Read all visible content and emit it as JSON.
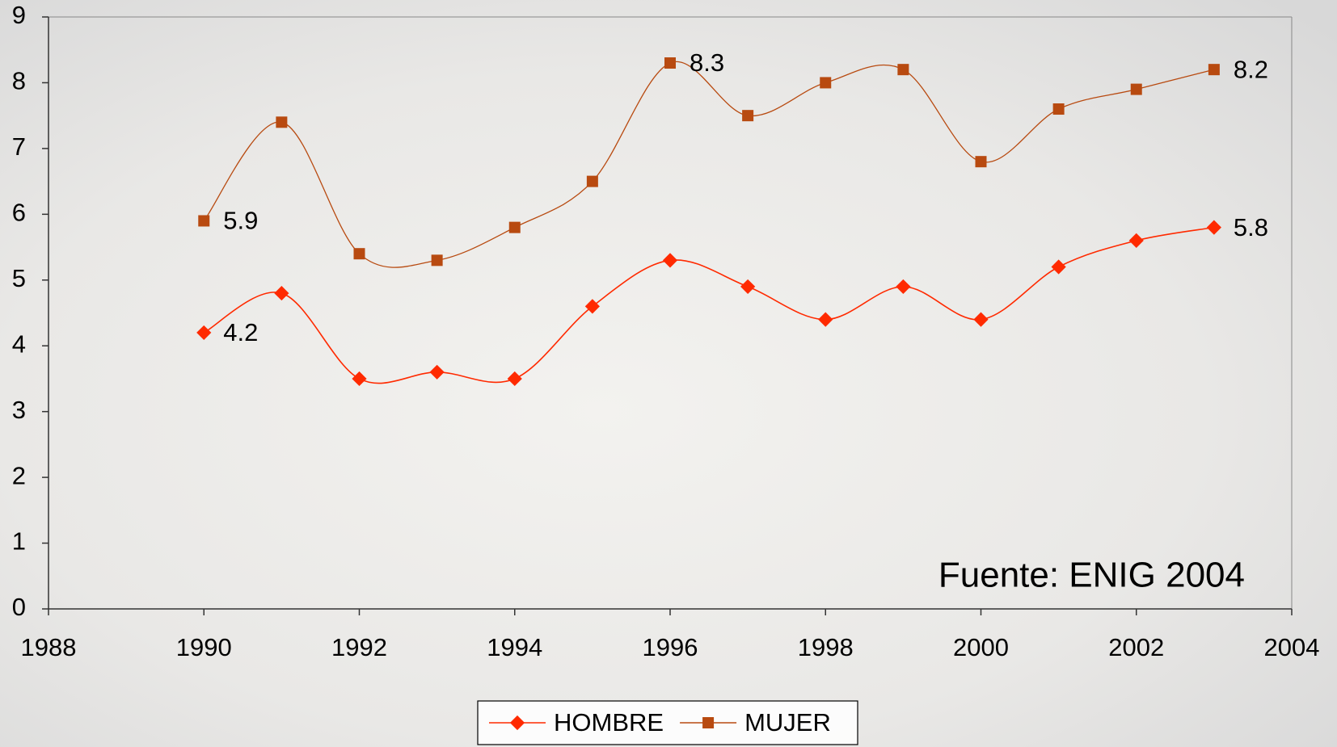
{
  "chart_data": {
    "type": "line",
    "annotation": "Fuente: ENIG 2004",
    "x": [
      1990,
      1991,
      1992,
      1993,
      1994,
      1995,
      1996,
      1997,
      1998,
      1999,
      2000,
      2001,
      2002,
      2003
    ],
    "series": [
      {
        "name": "HOMBRE",
        "color": "#ff2a00",
        "marker": "diamond",
        "values": [
          4.2,
          4.8,
          3.5,
          3.6,
          3.5,
          4.6,
          5.3,
          4.9,
          4.4,
          4.9,
          4.4,
          5.2,
          5.6,
          5.8
        ],
        "value_labels": [
          "4.2",
          null,
          null,
          null,
          null,
          null,
          null,
          null,
          null,
          null,
          null,
          null,
          null,
          "5.8"
        ]
      },
      {
        "name": "MUJER",
        "color": "#b84a10",
        "marker": "square",
        "values": [
          5.9,
          7.4,
          5.4,
          5.3,
          5.8,
          6.5,
          8.3,
          7.5,
          8.0,
          8.2,
          6.8,
          7.6,
          7.9,
          8.2
        ],
        "value_labels": [
          "5.9",
          null,
          null,
          null,
          null,
          null,
          "8.3",
          null,
          null,
          null,
          null,
          null,
          null,
          "8.2"
        ]
      }
    ],
    "xlim": [
      1988,
      2004
    ],
    "xticks": [
      1988,
      1990,
      1992,
      1994,
      1996,
      1998,
      2000,
      2002,
      2004
    ],
    "ylim": [
      0,
      9
    ],
    "yticks": [
      0,
      1,
      2,
      3,
      4,
      5,
      6,
      7,
      8,
      9
    ],
    "legend": "bottom",
    "smooth": true
  }
}
